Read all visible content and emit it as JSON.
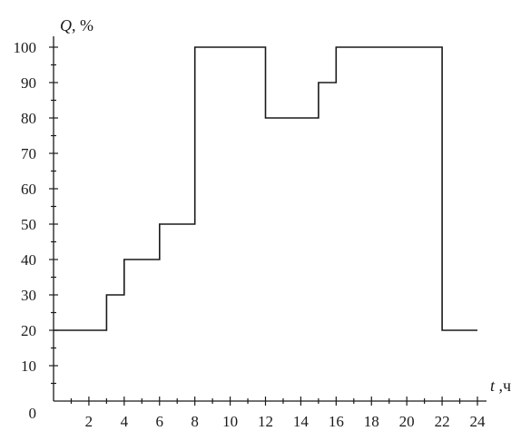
{
  "chart_data": {
    "type": "line",
    "step": true,
    "ylabel": {
      "var": "Q",
      "unit": ", %"
    },
    "xlabel": {
      "var": "t",
      "unit": " ,ч"
    },
    "origin_label": "0",
    "xlim": [
      0,
      24
    ],
    "ylim": [
      0,
      100
    ],
    "x_ticks": [
      2,
      4,
      6,
      8,
      10,
      12,
      14,
      16,
      18,
      20,
      22,
      24
    ],
    "x_tick_labels": [
      "2",
      "4",
      "6",
      "8",
      "10",
      "12",
      "14",
      "16",
      "18",
      "20",
      "22",
      "24"
    ],
    "y_ticks": [
      10,
      20,
      30,
      40,
      50,
      60,
      70,
      80,
      90,
      100
    ],
    "y_tick_labels": [
      "10",
      "20",
      "30",
      "40",
      "50",
      "60",
      "70",
      "80",
      "90",
      "100"
    ],
    "grid": false,
    "series": [
      {
        "x": [
          0,
          3,
          3,
          4,
          4,
          6,
          6,
          8,
          8,
          12,
          12,
          15,
          15,
          16,
          16,
          22,
          22,
          24
        ],
        "y": [
          20,
          20,
          30,
          30,
          40,
          40,
          50,
          50,
          100,
          100,
          80,
          80,
          90,
          90,
          100,
          100,
          20,
          20
        ]
      }
    ]
  }
}
